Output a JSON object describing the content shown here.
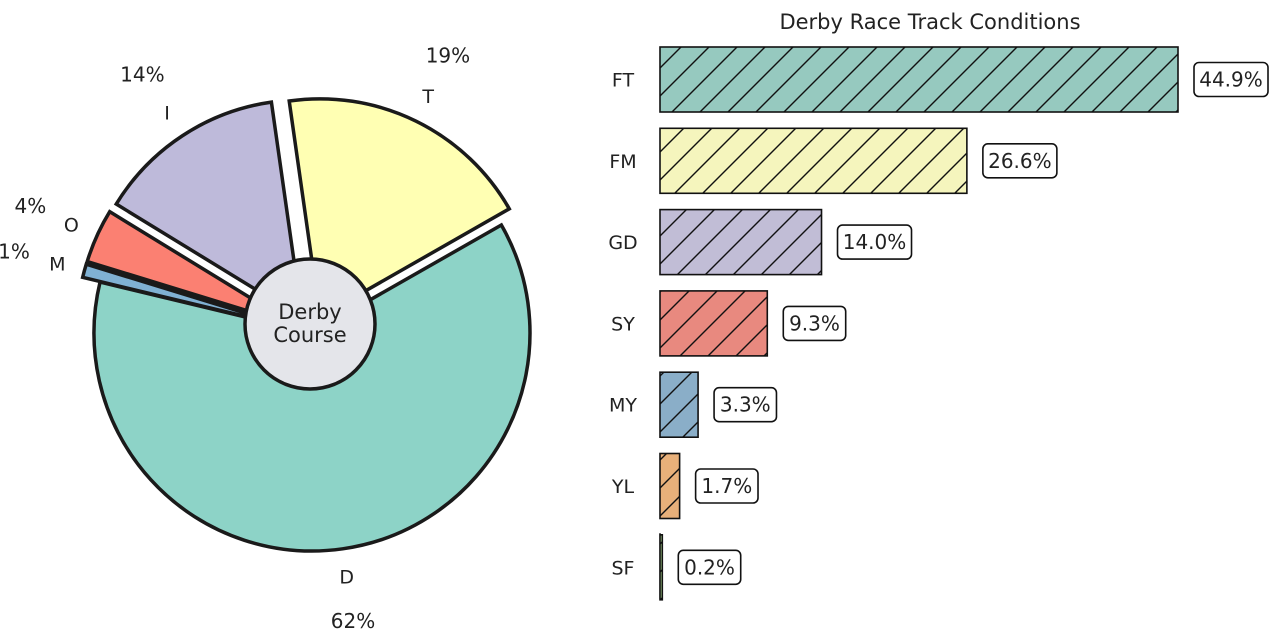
{
  "chart_data": [
    {
      "type": "pie",
      "center_label": "Derby\nCourse",
      "slices": [
        {
          "label": "D",
          "value": 62,
          "pct_label": "62%",
          "color": "#8dd3c7",
          "exploded": false
        },
        {
          "label": "T",
          "value": 19,
          "pct_label": "19%",
          "color": "#ffffb3",
          "exploded": true
        },
        {
          "label": "I",
          "value": 14,
          "pct_label": "14%",
          "color": "#bebada",
          "exploded": true
        },
        {
          "label": "O",
          "value": 4,
          "pct_label": "4%",
          "color": "#fb8072",
          "exploded": true
        },
        {
          "label": "M",
          "value": 1,
          "pct_label": "1%",
          "color": "#80b1d3",
          "exploded": true
        }
      ],
      "center_color": "#e4e5ea",
      "edge_color": "#1a1a1a"
    },
    {
      "type": "bar",
      "orientation": "horizontal",
      "title": "Derby Race Track Conditions",
      "categories": [
        "FT",
        "FM",
        "GD",
        "SY",
        "MY",
        "YL",
        "SF"
      ],
      "values": [
        44.9,
        26.6,
        14.0,
        9.3,
        3.3,
        1.7,
        0.2
      ],
      "value_labels": [
        "44.9%",
        "26.6%",
        "14.0%",
        "9.3%",
        "3.3%",
        "1.7%",
        "0.2%"
      ],
      "colors": [
        "#96c9bf",
        "#f5f5bd",
        "#c1bdd6",
        "#e8897f",
        "#8aaec8",
        "#e8b07a",
        "#a9d48d"
      ],
      "hatch": "diagonal",
      "xlim": [
        0,
        50
      ]
    }
  ]
}
